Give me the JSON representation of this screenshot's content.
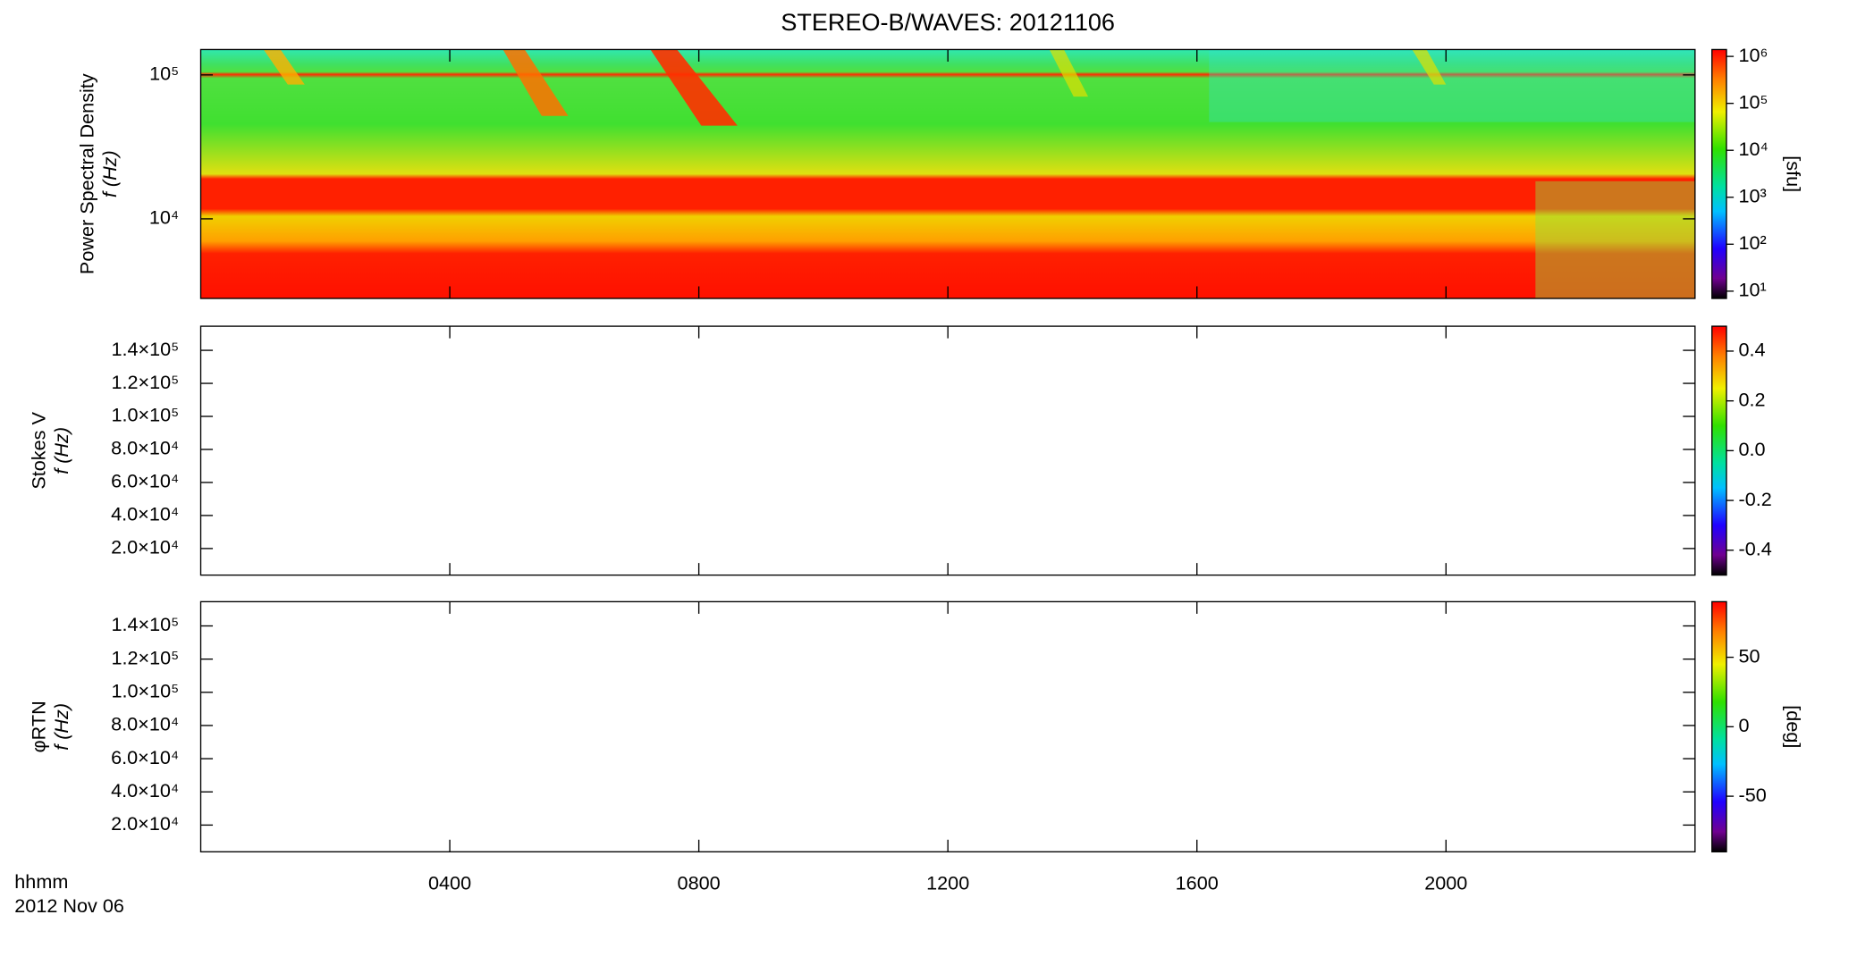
{
  "title": "STEREO-B/WAVES: 20121106",
  "x_axis": {
    "xlim": [
      0,
      24
    ],
    "xticks": [
      {
        "value": 4,
        "label": "0400"
      },
      {
        "value": 8,
        "label": "0800"
      },
      {
        "value": 12,
        "label": "1200"
      },
      {
        "value": 16,
        "label": "1600"
      },
      {
        "value": 20,
        "label": "2000"
      }
    ],
    "label": "hhmm",
    "date": "2012 Nov 06"
  },
  "chart_data": [
    {
      "type": "spectrogram",
      "ylabel": [
        "Power Spectral Density",
        "f (Hz)"
      ],
      "yscale": "log",
      "ylim": [
        2800,
        150000
      ],
      "yticks": [
        {
          "value": 10000,
          "label": "10⁴"
        },
        {
          "value": 100000,
          "label": "10⁵"
        }
      ],
      "colorbar": {
        "scale": "log",
        "lim": [
          7,
          1400000
        ],
        "ticks": [
          {
            "value": 10,
            "label": "10¹"
          },
          {
            "value": 100,
            "label": "10²"
          },
          {
            "value": 1000,
            "label": "10³"
          },
          {
            "value": 10000,
            "label": "10⁴"
          },
          {
            "value": 100000,
            "label": "10⁵"
          },
          {
            "value": 1000000,
            "label": "10⁶"
          }
        ],
        "label": "[sfu]"
      }
    },
    {
      "type": "spectrogram",
      "ylabel": [
        "Stokes V",
        "f (Hz)"
      ],
      "yscale": "linear",
      "ylim": [
        3900,
        154600
      ],
      "yticks": [
        {
          "value": 20000,
          "label": "2.0×10⁴"
        },
        {
          "value": 40000,
          "label": "4.0×10⁴"
        },
        {
          "value": 60000,
          "label": "6.0×10⁴"
        },
        {
          "value": 80000,
          "label": "8.0×10⁴"
        },
        {
          "value": 100000,
          "label": "1.0×10⁵"
        },
        {
          "value": 120000,
          "label": "1.2×10⁵"
        },
        {
          "value": 140000,
          "label": "1.4×10⁵"
        }
      ],
      "colorbar": {
        "scale": "linear",
        "lim": [
          -0.5,
          0.5
        ],
        "ticks": [
          -0.4,
          -0.2,
          {
            "value": 0,
            "label": "0.0"
          },
          0.2,
          0.4
        ]
      }
    },
    {
      "type": "spectrogram",
      "ylabel": [
        "φRTN",
        "f (Hz)"
      ],
      "yscale": "linear",
      "ylim": [
        3900,
        154600
      ],
      "yticks": [
        {
          "value": 20000,
          "label": "2.0×10⁴"
        },
        {
          "value": 40000,
          "label": "4.0×10⁴"
        },
        {
          "value": 60000,
          "label": "6.0×10⁴"
        },
        {
          "value": 80000,
          "label": "8.0×10⁴"
        },
        {
          "value": 100000,
          "label": "1.0×10⁵"
        },
        {
          "value": 120000,
          "label": "1.2×10⁵"
        },
        {
          "value": 140000,
          "label": "1.4×10⁵"
        }
      ],
      "colorbar": {
        "scale": "linear",
        "lim": [
          -90,
          90
        ],
        "ticks": [
          -50,
          0,
          50
        ],
        "label": "[deg]"
      }
    }
  ]
}
